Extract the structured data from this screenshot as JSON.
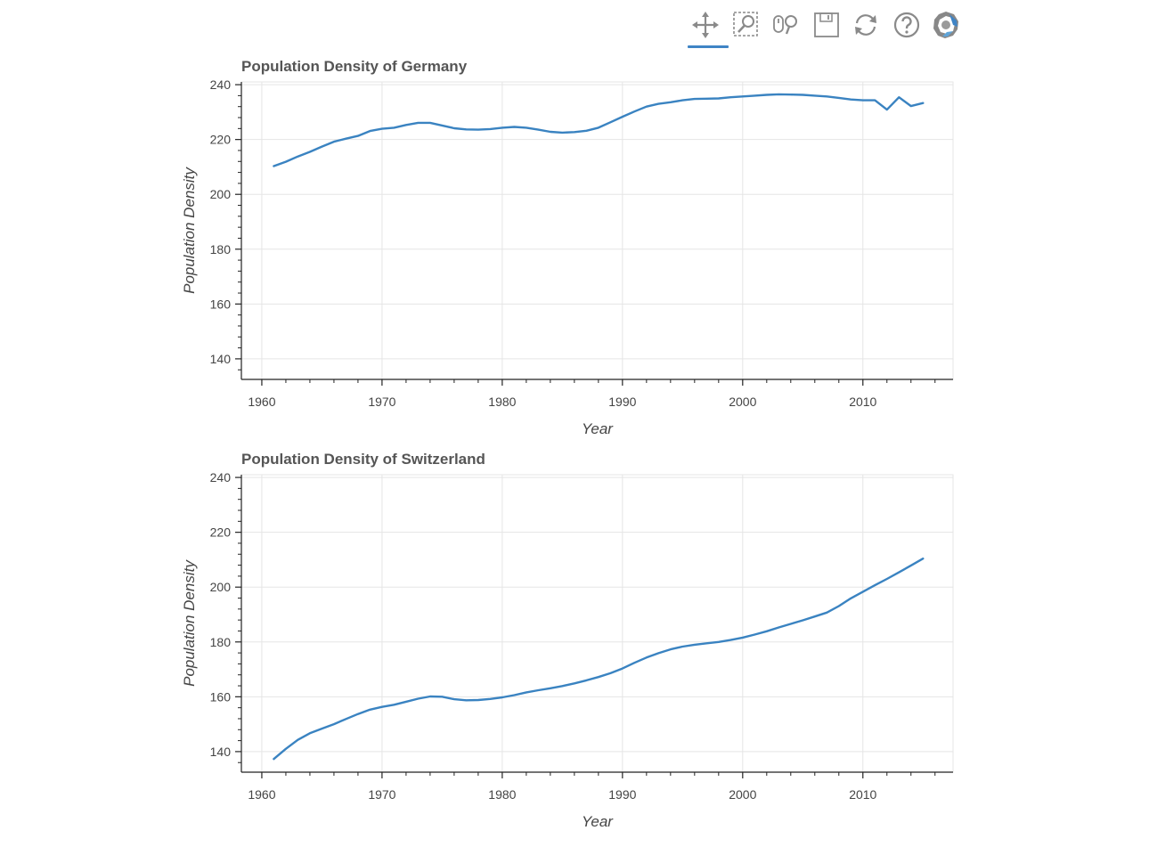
{
  "toolbar": {
    "tools": [
      {
        "name": "pan-tool",
        "icon": "move-arrows-icon",
        "active": true
      },
      {
        "name": "box-zoom-tool",
        "icon": "box-zoom-icon",
        "active": false
      },
      {
        "name": "wheel-zoom-tool",
        "icon": "wheel-zoom-icon",
        "active": false
      },
      {
        "name": "save-tool",
        "icon": "floppy-save-icon",
        "active": false
      },
      {
        "name": "reset-tool",
        "icon": "reset-icon",
        "active": false
      },
      {
        "name": "help-tool",
        "icon": "help-icon",
        "active": false
      },
      {
        "name": "bokeh-logo",
        "icon": "bokeh-logo-icon",
        "active": false
      }
    ]
  },
  "chart_data": [
    {
      "type": "line",
      "title": "Population Density of Germany",
      "xlabel": "Year",
      "ylabel": "Population Density",
      "xlim": [
        1958.3,
        2017.5
      ],
      "ylim": [
        132.5,
        241
      ],
      "xticks": [
        1960,
        1970,
        1980,
        1990,
        2000,
        2010
      ],
      "yticks": [
        140,
        160,
        180,
        200,
        220,
        240
      ],
      "grid": true,
      "color": "#3a83c1",
      "x": [
        1961,
        1962,
        1963,
        1964,
        1965,
        1966,
        1967,
        1968,
        1969,
        1970,
        1971,
        1972,
        1973,
        1974,
        1975,
        1976,
        1977,
        1978,
        1979,
        1980,
        1981,
        1982,
        1983,
        1984,
        1985,
        1986,
        1987,
        1988,
        1989,
        1990,
        1991,
        1992,
        1993,
        1994,
        1995,
        1996,
        1997,
        1998,
        1999,
        2000,
        2001,
        2002,
        2003,
        2004,
        2005,
        2006,
        2007,
        2008,
        2009,
        2010,
        2011,
        2012,
        2013,
        2014,
        2015
      ],
      "y": [
        210.3,
        211.9,
        213.8,
        215.5,
        217.4,
        219.2,
        220.3,
        221.3,
        223.1,
        223.9,
        224.3,
        225.3,
        226.1,
        226.1,
        225.1,
        224.1,
        223.7,
        223.6,
        223.8,
        224.3,
        224.6,
        224.3,
        223.6,
        222.8,
        222.5,
        222.7,
        223.2,
        224.3,
        226.3,
        228.3,
        230.2,
        232.0,
        233.0,
        233.6,
        234.3,
        234.8,
        234.9,
        235.0,
        235.4,
        235.7,
        236.0,
        236.3,
        236.5,
        236.4,
        236.3,
        236.0,
        235.7,
        235.2,
        234.6,
        234.3,
        234.3,
        230.9,
        235.4,
        232.2,
        233.3
      ]
    },
    {
      "type": "line",
      "title": "Population Density of Switzerland",
      "xlabel": "Year",
      "ylabel": "Population Density",
      "xlim": [
        1958.3,
        2017.5
      ],
      "ylim": [
        132.5,
        241
      ],
      "xticks": [
        1960,
        1970,
        1980,
        1990,
        2000,
        2010
      ],
      "yticks": [
        140,
        160,
        180,
        200,
        220,
        240
      ],
      "grid": true,
      "color": "#3a83c1",
      "x": [
        1961,
        1962,
        1963,
        1964,
        1965,
        1966,
        1967,
        1968,
        1969,
        1970,
        1971,
        1972,
        1973,
        1974,
        1975,
        1976,
        1977,
        1978,
        1979,
        1980,
        1981,
        1982,
        1983,
        1984,
        1985,
        1986,
        1987,
        1988,
        1989,
        1990,
        1991,
        1992,
        1993,
        1994,
        1995,
        1996,
        1997,
        1998,
        1999,
        2000,
        2001,
        2002,
        2003,
        2004,
        2005,
        2006,
        2007,
        2008,
        2009,
        2010,
        2011,
        2012,
        2013,
        2014,
        2015
      ],
      "y": [
        137.3,
        141.0,
        144.3,
        146.7,
        148.4,
        150.0,
        151.9,
        153.7,
        155.3,
        156.3,
        157.1,
        158.2,
        159.3,
        160.1,
        160.0,
        159.1,
        158.7,
        158.8,
        159.2,
        159.8,
        160.6,
        161.6,
        162.4,
        163.1,
        163.9,
        164.9,
        166.0,
        167.2,
        168.6,
        170.3,
        172.4,
        174.3,
        175.9,
        177.3,
        178.3,
        179.0,
        179.5,
        180.0,
        180.7,
        181.6,
        182.7,
        183.9,
        185.3,
        186.6,
        187.9,
        189.3,
        190.7,
        193.1,
        195.9,
        198.3,
        200.7,
        203.0,
        205.4,
        207.9,
        210.4
      ]
    }
  ]
}
